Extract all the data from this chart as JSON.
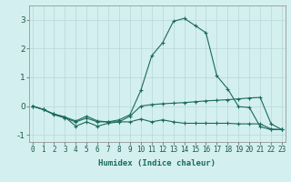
{
  "xlabel": "Humidex (Indice chaleur)",
  "bg_color": "#d4efef",
  "grid_color": "#b8d8d8",
  "line_color": "#1a6b5a",
  "x": [
    0,
    1,
    2,
    3,
    4,
    5,
    6,
    7,
    8,
    9,
    10,
    11,
    12,
    13,
    14,
    15,
    16,
    17,
    18,
    19,
    20,
    21,
    22,
    23
  ],
  "series1": [
    0.0,
    -0.12,
    -0.3,
    -0.42,
    -0.55,
    -0.42,
    -0.55,
    -0.55,
    -0.55,
    -0.55,
    -0.45,
    -0.55,
    -0.48,
    -0.55,
    -0.6,
    -0.6,
    -0.6,
    -0.6,
    -0.6,
    -0.62,
    -0.62,
    -0.62,
    -0.8,
    -0.82
  ],
  "series2": [
    0.0,
    -0.12,
    -0.28,
    -0.38,
    -0.7,
    -0.55,
    -0.7,
    -0.6,
    -0.55,
    -0.35,
    0.0,
    0.05,
    0.08,
    0.1,
    0.12,
    0.15,
    0.18,
    0.2,
    0.22,
    0.25,
    0.28,
    0.3,
    -0.62,
    -0.82
  ],
  "series3": [
    0.0,
    -0.12,
    -0.28,
    -0.38,
    -0.52,
    -0.35,
    -0.52,
    -0.55,
    -0.48,
    -0.3,
    0.55,
    1.75,
    2.2,
    2.95,
    3.05,
    2.8,
    2.55,
    1.05,
    0.6,
    -0.02,
    -0.05,
    -0.72,
    -0.82,
    -0.82
  ],
  "ylim": [
    -1.25,
    3.5
  ],
  "yticks": [
    -1,
    0,
    1,
    2,
    3
  ],
  "xlim": [
    -0.3,
    23.3
  ],
  "xticks": [
    0,
    1,
    2,
    3,
    4,
    5,
    6,
    7,
    8,
    9,
    10,
    11,
    12,
    13,
    14,
    15,
    16,
    17,
    18,
    19,
    20,
    21,
    22,
    23
  ],
  "marker": "+",
  "markersize": 3.5,
  "linewidth": 0.8,
  "tick_fontsize": 5.5,
  "xlabel_fontsize": 6.5
}
